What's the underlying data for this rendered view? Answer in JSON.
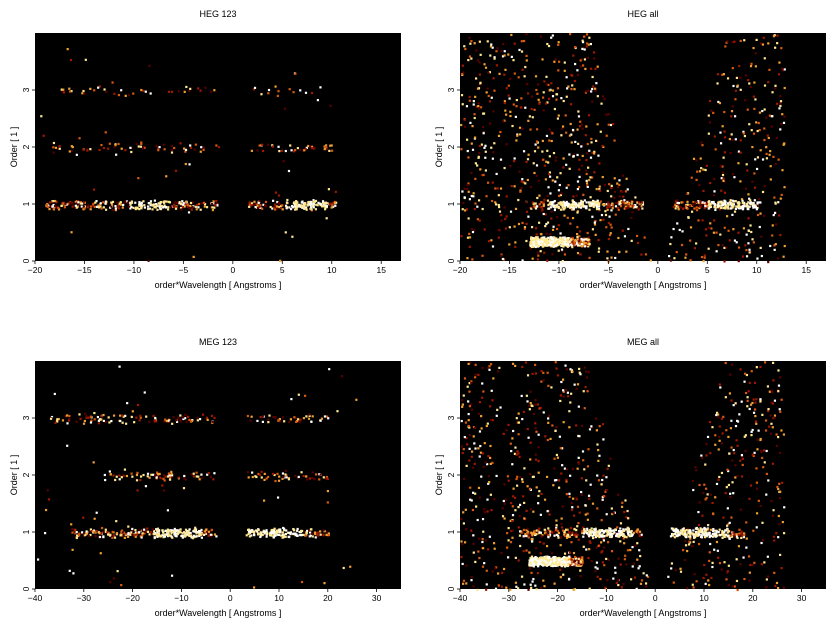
{
  "colors": {
    "background": "#000000",
    "intensity_scale": [
      "#5a0000",
      "#a01800",
      "#d85a10",
      "#f0a030",
      "#ffe890",
      "#ffffff"
    ]
  },
  "chart_data": [
    {
      "type": "heatmap",
      "title": "HEG 123",
      "xlabel": "order*Wavelength [ Angstroms ]",
      "ylabel": "Order [ 1 ]",
      "xlim": [
        -20,
        17
      ],
      "ylim": [
        0,
        4
      ],
      "xticks": [
        -20,
        -15,
        -10,
        -5,
        0,
        5,
        10,
        15
      ],
      "yticks": [
        0,
        1,
        2,
        3
      ],
      "bands": [
        {
          "order": 1,
          "xmin": -19,
          "xmax": 10.5,
          "density": 0.9,
          "hot": [
            [
              -10.5,
              -6.5
            ],
            [
              5,
              9.5
            ]
          ]
        },
        {
          "order": 2,
          "xmin": -19,
          "xmax": 10,
          "density": 0.25,
          "hot": []
        },
        {
          "order": 3,
          "xmin": -18,
          "xmax": 9,
          "density": 0.15,
          "hot": []
        }
      ],
      "gap": [
        -1.5,
        1.5
      ],
      "background_noise": 0.02
    },
    {
      "type": "heatmap",
      "title": "HEG all",
      "xlabel": "order*Wavelength [ Angstroms ]",
      "ylabel": "Order [ 1 ]",
      "xlim": [
        -20,
        17
      ],
      "ylim": [
        0,
        4
      ],
      "xticks": [
        -20,
        -15,
        -10,
        -5,
        0,
        5,
        10,
        15
      ],
      "yticks": [
        0,
        1,
        2,
        3
      ],
      "bands": [
        {
          "order": 1,
          "xmin": -13,
          "xmax": 10.5,
          "density": 0.95,
          "hot": [
            [
              -11,
              -6
            ],
            [
              5,
              10
            ]
          ]
        },
        {
          "order": 0.35,
          "xmin": -13,
          "xmax": -7,
          "density": 0.8,
          "hot": [
            [
              -13,
              -9
            ]
          ]
        }
      ],
      "gap": [
        -1.5,
        1.5
      ],
      "background_noise": 0.55
    },
    {
      "type": "heatmap",
      "title": "MEG 123",
      "xlabel": "order*Wavelength [ Angstroms ]",
      "ylabel": "Order [ 1 ]",
      "xlim": [
        -40,
        35
      ],
      "ylim": [
        0,
        4
      ],
      "xticks": [
        -40,
        -30,
        -20,
        -10,
        0,
        10,
        20,
        30
      ],
      "yticks": [
        0,
        1,
        2,
        3
      ],
      "bands": [
        {
          "order": 1,
          "xmin": -33,
          "xmax": 20,
          "density": 0.9,
          "hot": [
            [
              -16,
              -6
            ],
            [
              3,
              15
            ]
          ]
        },
        {
          "order": 2,
          "xmin": -26,
          "xmax": 20,
          "density": 0.35,
          "hot": []
        },
        {
          "order": 3,
          "xmin": -37,
          "xmax": 20,
          "density": 0.35,
          "hot": []
        }
      ],
      "gap": [
        -3,
        3
      ],
      "background_noise": 0.03
    },
    {
      "type": "heatmap",
      "title": "MEG all",
      "xlabel": "order*Wavelength [ Angstroms ]",
      "ylabel": "Order [ 1 ]",
      "xlim": [
        -40,
        35
      ],
      "ylim": [
        0,
        4
      ],
      "xticks": [
        -40,
        -30,
        -20,
        -10,
        0,
        10,
        20,
        30
      ],
      "yticks": [
        0,
        1,
        2,
        3
      ],
      "bands": [
        {
          "order": 1,
          "xmin": -28,
          "xmax": 18,
          "density": 0.95,
          "hot": [
            [
              -15,
              -5
            ],
            [
              3,
              15
            ]
          ]
        },
        {
          "order": 0.5,
          "xmin": -26,
          "xmax": -15,
          "density": 0.8,
          "hot": [
            [
              -26,
              -18
            ]
          ]
        }
      ],
      "gap": [
        -3,
        3
      ],
      "background_noise": 0.5
    }
  ]
}
